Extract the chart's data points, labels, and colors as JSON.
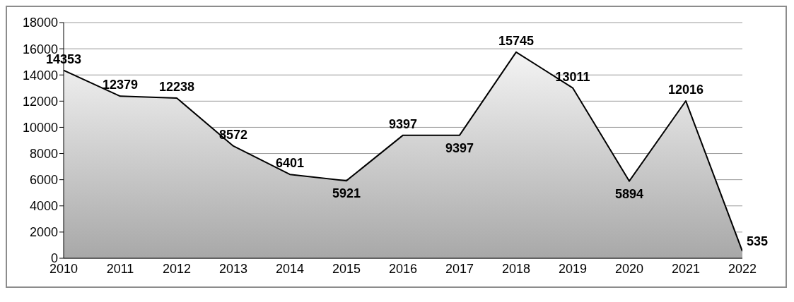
{
  "chart_data": {
    "type": "area",
    "categories": [
      "2010",
      "2011",
      "2012",
      "2013",
      "2014",
      "2015",
      "2016",
      "2017",
      "2018",
      "2019",
      "2020",
      "2021",
      "2022"
    ],
    "series": [
      {
        "color": "#000000",
        "values": [
          14353,
          12379,
          12238,
          8572,
          6401,
          5921,
          9397,
          9397,
          15745,
          13011,
          5894,
          12016,
          535
        ]
      }
    ],
    "ylim": [
      0,
      18000
    ],
    "yticks": [
      0,
      2000,
      4000,
      6000,
      8000,
      10000,
      12000,
      14000,
      16000,
      18000
    ],
    "grid": "y",
    "data_labels": true
  }
}
